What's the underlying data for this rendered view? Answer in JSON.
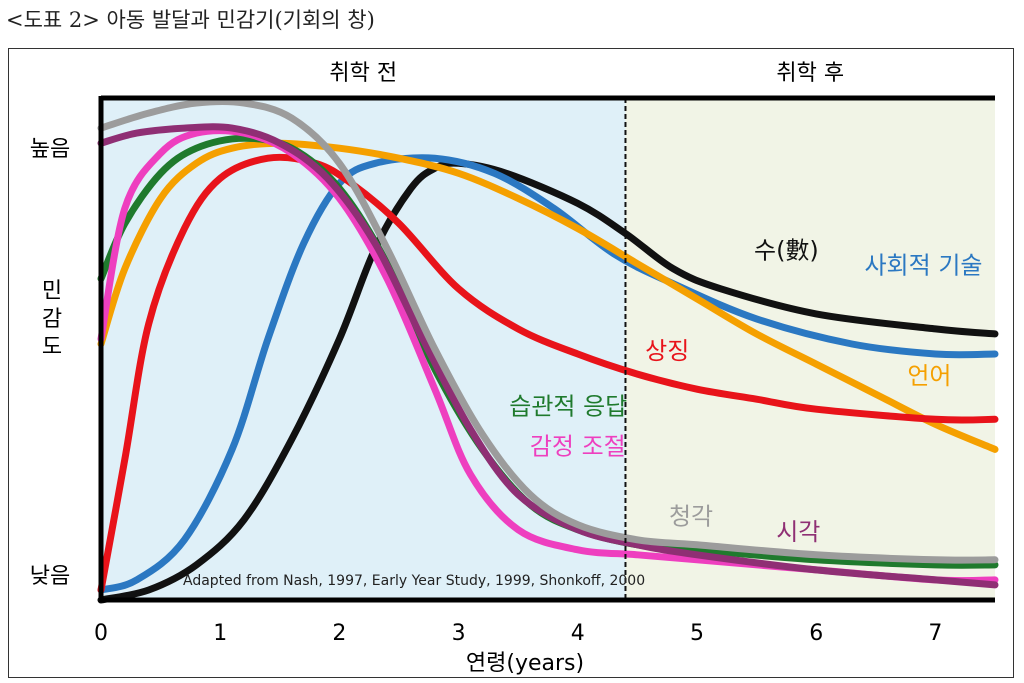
{
  "caption": "<도표 2> 아동 발달과 민감기(기회의 창)",
  "chart_data": {
    "type": "line",
    "title": "<도표 2> 아동 발달과 민감기(기회의 창)",
    "xlabel": "연령(years)",
    "ylabel": "민감도",
    "xlim": [
      0,
      7.5
    ],
    "ylim": [
      0,
      1
    ],
    "x_ticks": [
      "0",
      "1",
      "2",
      "3",
      "4",
      "5",
      "6",
      "7"
    ],
    "y_ticks": [
      {
        "label": "높음",
        "value": 0.9
      },
      {
        "label": "낮음",
        "value": 0.05
      }
    ],
    "periods": [
      {
        "label": "취학 전",
        "from": 0,
        "to": 4.4,
        "color": "#dff0f8"
      },
      {
        "label": "취학 후",
        "from": 4.4,
        "to": 7.5,
        "color": "#f1f4e6"
      }
    ],
    "source_note": "Adapted from Nash, 1997, Early Year Study, 1999, Shonkoff, 2000",
    "series": [
      {
        "name": "수(數)",
        "color": "#111111",
        "points": [
          [
            0,
            0.0
          ],
          [
            0.4,
            0.02
          ],
          [
            0.8,
            0.07
          ],
          [
            1.2,
            0.16
          ],
          [
            1.6,
            0.32
          ],
          [
            2.0,
            0.52
          ],
          [
            2.3,
            0.7
          ],
          [
            2.6,
            0.82
          ],
          [
            2.8,
            0.86
          ],
          [
            3.0,
            0.87
          ],
          [
            3.4,
            0.85
          ],
          [
            4.0,
            0.79
          ],
          [
            4.4,
            0.73
          ],
          [
            4.8,
            0.66
          ],
          [
            5.2,
            0.62
          ],
          [
            6.0,
            0.57
          ],
          [
            7.0,
            0.54
          ],
          [
            7.5,
            0.53
          ]
        ]
      },
      {
        "name": "사회적 기술",
        "color": "#2b78c2",
        "points": [
          [
            0,
            0.02
          ],
          [
            0.3,
            0.04
          ],
          [
            0.7,
            0.12
          ],
          [
            1.1,
            0.3
          ],
          [
            1.4,
            0.52
          ],
          [
            1.7,
            0.71
          ],
          [
            2.0,
            0.83
          ],
          [
            2.3,
            0.87
          ],
          [
            2.8,
            0.88
          ],
          [
            3.3,
            0.85
          ],
          [
            3.8,
            0.78
          ],
          [
            4.3,
            0.69
          ],
          [
            4.8,
            0.63
          ],
          [
            5.5,
            0.56
          ],
          [
            6.3,
            0.51
          ],
          [
            7.0,
            0.49
          ],
          [
            7.5,
            0.49
          ]
        ]
      },
      {
        "name": "언어",
        "color": "#f5a000",
        "points": [
          [
            0,
            0.51
          ],
          [
            0.2,
            0.66
          ],
          [
            0.5,
            0.8
          ],
          [
            0.8,
            0.87
          ],
          [
            1.1,
            0.9
          ],
          [
            1.5,
            0.91
          ],
          [
            2.0,
            0.9
          ],
          [
            2.5,
            0.88
          ],
          [
            3.0,
            0.85
          ],
          [
            3.5,
            0.8
          ],
          [
            4.0,
            0.74
          ],
          [
            4.5,
            0.67
          ],
          [
            5.0,
            0.6
          ],
          [
            5.5,
            0.53
          ],
          [
            6.0,
            0.47
          ],
          [
            6.5,
            0.41
          ],
          [
            7.0,
            0.35
          ],
          [
            7.5,
            0.3
          ]
        ]
      },
      {
        "name": "상징",
        "color": "#e8131a",
        "points": [
          [
            0,
            0.02
          ],
          [
            0.2,
            0.28
          ],
          [
            0.4,
            0.55
          ],
          [
            0.7,
            0.74
          ],
          [
            1.0,
            0.84
          ],
          [
            1.4,
            0.88
          ],
          [
            1.8,
            0.87
          ],
          [
            2.1,
            0.83
          ],
          [
            2.5,
            0.75
          ],
          [
            3.0,
            0.62
          ],
          [
            3.5,
            0.54
          ],
          [
            4.0,
            0.49
          ],
          [
            4.5,
            0.45
          ],
          [
            5.0,
            0.42
          ],
          [
            5.5,
            0.4
          ],
          [
            6.0,
            0.38
          ],
          [
            7.0,
            0.36
          ],
          [
            7.5,
            0.36
          ]
        ]
      },
      {
        "name": "습관적 응답",
        "color": "#1f7a2d",
        "points": [
          [
            0,
            0.64
          ],
          [
            0.2,
            0.75
          ],
          [
            0.5,
            0.85
          ],
          [
            0.8,
            0.9
          ],
          [
            1.2,
            0.92
          ],
          [
            1.6,
            0.9
          ],
          [
            2.0,
            0.82
          ],
          [
            2.4,
            0.67
          ],
          [
            2.8,
            0.46
          ],
          [
            3.2,
            0.3
          ],
          [
            3.6,
            0.19
          ],
          [
            4.0,
            0.14
          ],
          [
            4.5,
            0.11
          ],
          [
            5.0,
            0.1
          ],
          [
            6.0,
            0.08
          ],
          [
            7.0,
            0.07
          ],
          [
            7.5,
            0.07
          ]
        ]
      },
      {
        "name": "감정 조절",
        "color": "#ee3fbf",
        "points": [
          [
            0,
            0.52
          ],
          [
            0.2,
            0.78
          ],
          [
            0.5,
            0.89
          ],
          [
            0.8,
            0.93
          ],
          [
            1.2,
            0.93
          ],
          [
            1.6,
            0.89
          ],
          [
            2.0,
            0.8
          ],
          [
            2.4,
            0.64
          ],
          [
            2.8,
            0.42
          ],
          [
            3.1,
            0.25
          ],
          [
            3.5,
            0.14
          ],
          [
            4.0,
            0.1
          ],
          [
            4.5,
            0.09
          ],
          [
            5.0,
            0.08
          ],
          [
            6.0,
            0.06
          ],
          [
            7.0,
            0.04
          ],
          [
            7.5,
            0.04
          ]
        ]
      },
      {
        "name": "시각",
        "color": "#8f2f74",
        "points": [
          [
            0,
            0.91
          ],
          [
            0.3,
            0.93
          ],
          [
            0.7,
            0.94
          ],
          [
            1.1,
            0.94
          ],
          [
            1.5,
            0.91
          ],
          [
            1.9,
            0.84
          ],
          [
            2.3,
            0.71
          ],
          [
            2.7,
            0.52
          ],
          [
            3.1,
            0.34
          ],
          [
            3.5,
            0.21
          ],
          [
            4.0,
            0.14
          ],
          [
            4.5,
            0.11
          ],
          [
            5.0,
            0.09
          ],
          [
            6.0,
            0.06
          ],
          [
            7.0,
            0.04
          ],
          [
            7.5,
            0.03
          ]
        ]
      },
      {
        "name": "청각",
        "color": "#9c9c9c",
        "points": [
          [
            0,
            0.94
          ],
          [
            0.4,
            0.97
          ],
          [
            0.8,
            0.99
          ],
          [
            1.2,
            0.99
          ],
          [
            1.6,
            0.96
          ],
          [
            2.0,
            0.87
          ],
          [
            2.4,
            0.7
          ],
          [
            2.8,
            0.5
          ],
          [
            3.2,
            0.33
          ],
          [
            3.6,
            0.21
          ],
          [
            4.0,
            0.15
          ],
          [
            4.5,
            0.12
          ],
          [
            5.0,
            0.11
          ],
          [
            6.0,
            0.09
          ],
          [
            7.0,
            0.08
          ],
          [
            7.5,
            0.08
          ]
        ]
      }
    ],
    "labels": [
      {
        "text": "수(數)",
        "x": 5.75,
        "y": 0.68,
        "color": "#111111"
      },
      {
        "text": "사회적 기술",
        "x": 6.9,
        "y": 0.65,
        "color": "#2b78c2"
      },
      {
        "text": "상징",
        "x": 4.75,
        "y": 0.48,
        "color": "#e8131a"
      },
      {
        "text": "언어",
        "x": 6.95,
        "y": 0.43,
        "color": "#f5a000"
      },
      {
        "text": "습관적 응답",
        "x": 3.92,
        "y": 0.37,
        "color": "#1f7a2d"
      },
      {
        "text": "감정 조절",
        "x": 4.0,
        "y": 0.29,
        "color": "#ee3fbf"
      },
      {
        "text": "청각",
        "x": 4.95,
        "y": 0.15,
        "color": "#9c9c9c"
      },
      {
        "text": "시각",
        "x": 5.85,
        "y": 0.12,
        "color": "#8f2f74"
      }
    ]
  }
}
